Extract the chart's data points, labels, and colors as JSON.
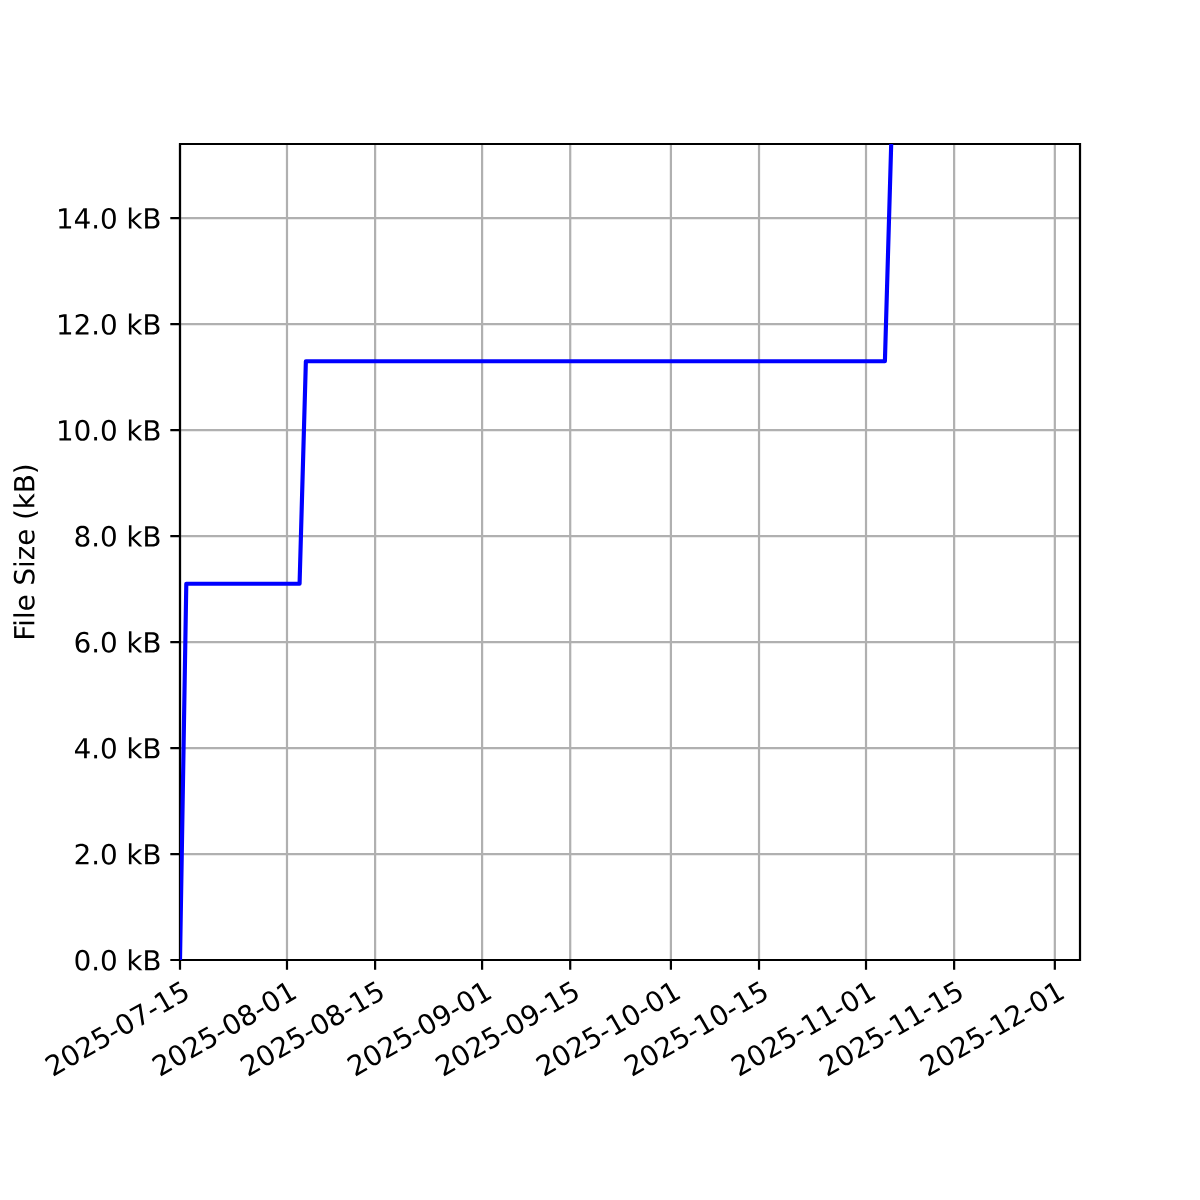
{
  "chart_data": {
    "type": "line",
    "ylabel": "File Size (kB)",
    "x": [
      "2025-07-15",
      "2025-07-16",
      "2025-08-03",
      "2025-08-04",
      "2025-11-04",
      "2025-11-05"
    ],
    "values": [
      0,
      7.1,
      7.1,
      11.3,
      11.3,
      15.4
    ],
    "color": "#0000ff",
    "xlim": [
      "2025-07-15",
      "2025-12-05"
    ],
    "ylim": [
      0,
      15.4
    ],
    "xticks": [
      "2025-07-15",
      "2025-08-01",
      "2025-08-15",
      "2025-09-01",
      "2025-09-15",
      "2025-10-01",
      "2025-10-15",
      "2025-11-01",
      "2025-11-15",
      "2025-12-01"
    ],
    "yticks": [
      {
        "value": 0,
        "label": "0.0 kB"
      },
      {
        "value": 2,
        "label": "2.0 kB"
      },
      {
        "value": 4,
        "label": "4.0 kB"
      },
      {
        "value": 6,
        "label": "6.0 kB"
      },
      {
        "value": 8,
        "label": "8.0 kB"
      },
      {
        "value": 10,
        "label": "10.0 kB"
      },
      {
        "value": 12,
        "label": "12.0 kB"
      },
      {
        "value": 14,
        "label": "14.0 kB"
      }
    ],
    "grid": true,
    "line_style": "solid"
  }
}
